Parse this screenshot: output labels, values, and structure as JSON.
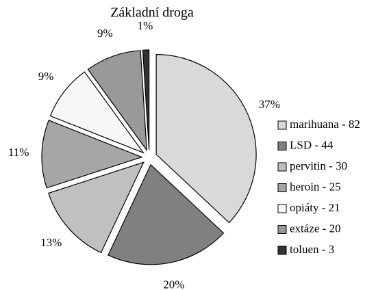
{
  "chart_data": {
    "type": "pie",
    "title": "Základní droga",
    "categories": [
      "marihuana - 82",
      "LSD - 44",
      "pervitin - 30",
      "heroin - 25",
      "opiáty - 21",
      "extáze - 20",
      "toluen - 3"
    ],
    "values": [
      37,
      20,
      13,
      11,
      9,
      9,
      1
    ],
    "value_labels": [
      "37%",
      "20%",
      "13%",
      "11%",
      "9%",
      "9%",
      "1%"
    ],
    "colors": [
      "#d9d9d9",
      "#808080",
      "#c0c0c0",
      "#a6a6a6",
      "#f7f7f7",
      "#999999",
      "#333333"
    ],
    "legend": "right"
  }
}
